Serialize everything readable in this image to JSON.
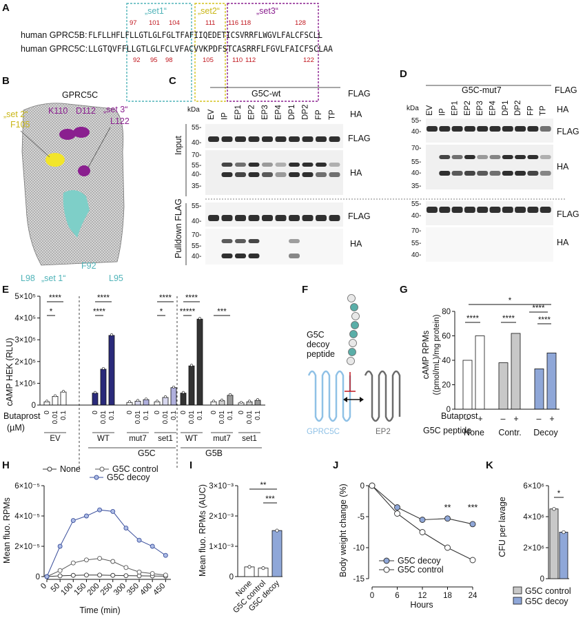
{
  "panels": {
    "A": {
      "letter": "A",
      "set1": "„set1“",
      "set2": "„set2“",
      "set3": "„set3“",
      "seqB_label": "human GPRC5B:",
      "seqB": "FLFLLHFLFLLGTLGLFGLTFAFIIQEDETICSVRRFLWGVLFALCFSCLL",
      "seqC_label": "human GPRC5C:",
      "seqC": "LLGTQVFFLLGTLGLFCLVFACVVKPDFSTCASRRFLFGVLFAICFSCLAA",
      "top_numbers": [
        "97",
        "101",
        "104",
        "111",
        "116",
        "118",
        "128"
      ],
      "bottom_numbers": [
        "92",
        "95",
        "98",
        "105",
        "110",
        "112",
        "122"
      ]
    },
    "B": {
      "letter": "B",
      "title": "GPRC5C",
      "set2_label": "„set 2“",
      "F105": "F105",
      "K110": "K110",
      "D112": "D112",
      "set3_label": "„set 3“",
      "L122": "L122",
      "L98": "L98",
      "set1_label": "„set 1“",
      "F92": "F92",
      "L95": "L95",
      "colors": {
        "set1": "#7ecfc8",
        "set2": "#f2e52a",
        "set3": "#8a1f8f"
      }
    },
    "C": {
      "letter": "C",
      "group": "G5C-wt",
      "flag": "FLAG",
      "ha": "HA",
      "kda": "kDa",
      "lanes": [
        "EV",
        "IP",
        "EP1",
        "EP2",
        "EP3",
        "EP4",
        "DP1",
        "DP2",
        "FP",
        "TP"
      ],
      "input_label": "Input",
      "pulldown_label": "Pulldown FLAG",
      "mw_input_flag": [
        "55-",
        "40-"
      ],
      "mw_input_ha": [
        "70-",
        "55-",
        "40-",
        "35-"
      ],
      "mw_pull_flag": [
        "55-",
        "40-"
      ],
      "mw_pull_ha": [
        "70-",
        "55-",
        "40-"
      ]
    },
    "D": {
      "letter": "D",
      "group": "G5C-mut7",
      "flag": "FLAG",
      "ha": "HA",
      "kda": "kDa",
      "lanes": [
        "EV",
        "IP",
        "EP1",
        "EP2",
        "EP3",
        "EP4",
        "DP1",
        "DP2",
        "FP",
        "TP"
      ],
      "mw_input_flag": [
        "55-",
        "40-"
      ],
      "mw_input_ha": [
        "70-",
        "55-",
        "40-",
        "35-"
      ],
      "mw_pull_flag": [
        "55-",
        "40-"
      ],
      "mw_pull_ha": [
        "70-",
        "55-",
        "40-"
      ]
    },
    "E": {
      "letter": "E",
      "ylabel": "cAMP HEK (RLU)",
      "yticks": [
        "0",
        "1×10⁵",
        "2×10⁵",
        "3×10⁵",
        "4×10⁵",
        "5×10⁵"
      ],
      "butaprost": "Butaprost",
      "unit": "(µM)",
      "doses": [
        "0",
        "0.01",
        "0.1"
      ],
      "groups": [
        "EV",
        "WT",
        "mut7",
        "set1",
        "WT",
        "mut7",
        "set1"
      ],
      "g5c": "G5C",
      "g5b": "G5B",
      "sig": [
        "****",
        "*",
        "****",
        "****",
        "****",
        "*",
        "****",
        "*****",
        "***"
      ]
    },
    "F": {
      "letter": "F",
      "peptide_label_1": "G5C",
      "peptide_label_2": "decoy",
      "peptide_label_3": "peptide",
      "gprc5c": "GPRC5C",
      "ep2": "EP2"
    },
    "G": {
      "letter": "G",
      "ylabel": "cAMP RPMs",
      "ylabel2": "((pmol/mL)/mg protein)",
      "yticks": [
        "0",
        "20",
        "40",
        "60",
        "80"
      ],
      "butaprost": "Butaprost",
      "minus": "–",
      "plus": "+",
      "peptide": "G5C peptide",
      "groups": [
        "None",
        "Contr.",
        "Decoy"
      ],
      "sig": [
        "*",
        "****",
        "****",
        "****",
        "****"
      ]
    },
    "H": {
      "letter": "H",
      "ylabel": "Mean fluo. RPMs",
      "xlabel": "Time (min)",
      "yticks": [
        "0",
        "2×10⁻⁵",
        "4×10⁻⁵",
        "6×10⁻⁵"
      ],
      "xticks": [
        "0",
        "50",
        "100",
        "150",
        "200",
        "250",
        "300",
        "350",
        "400",
        "450"
      ],
      "legend": [
        "None",
        "G5C control",
        "G5C decoy"
      ]
    },
    "I": {
      "letter": "I",
      "ylabel": "Mean fluo. RPMs (AUC)",
      "yticks": [
        "0",
        "1×10⁻³",
        "2×10⁻³",
        "3×10⁻³"
      ],
      "cats": [
        "None",
        "G5C control",
        "G5C decoy"
      ],
      "sig": [
        "**",
        "***"
      ]
    },
    "J": {
      "letter": "J",
      "ylabel": "Body weight change (%)",
      "xlabel": "Hours",
      "yticks": [
        "0",
        "-5",
        "-10",
        "-15"
      ],
      "xticks": [
        "0",
        "6",
        "12",
        "18",
        "24"
      ],
      "legend": [
        "G5C decoy",
        "G5C control"
      ],
      "sig": [
        "**",
        "***"
      ]
    },
    "K": {
      "letter": "K",
      "ylabel": "CFU per lavage",
      "yticks": [
        "0",
        "2×10⁶",
        "4×10⁶",
        "6×10⁶"
      ],
      "legend": [
        "G5C control",
        "G5C decoy"
      ],
      "sig": [
        "*"
      ]
    }
  },
  "chart_data": [
    {
      "panel": "E",
      "type": "bar",
      "categories": [
        "EV",
        "G5C WT",
        "G5C mut7",
        "G5C set1",
        "G5B WT",
        "G5B mut7",
        "G5B set1"
      ],
      "series": [
        {
          "name": "0",
          "values": [
            15000,
            55000,
            12000,
            15000,
            55000,
            15000,
            10000
          ]
        },
        {
          "name": "0.01",
          "values": [
            40000,
            165000,
            18000,
            35000,
            180000,
            20000,
            15000
          ]
        },
        {
          "name": "0.1",
          "values": [
            60000,
            320000,
            25000,
            80000,
            395000,
            45000,
            22000
          ]
        }
      ],
      "ylim": [
        0,
        500000
      ]
    },
    {
      "panel": "G",
      "type": "bar",
      "categories": [
        "None",
        "Contr.",
        "Decoy"
      ],
      "series": [
        {
          "name": "–",
          "values": [
            40,
            38,
            33
          ]
        },
        {
          "name": "+",
          "values": [
            60,
            62,
            46
          ]
        }
      ],
      "ylim": [
        0,
        80
      ]
    },
    {
      "panel": "H",
      "type": "line",
      "x": [
        0,
        50,
        100,
        150,
        200,
        250,
        300,
        350,
        400,
        450
      ],
      "series": [
        {
          "name": "None",
          "values": [
            0.0,
            5e-07,
            8e-07,
            1e-06,
            1e-06,
            8e-07,
            6e-07,
            5e-07,
            4e-07,
            3e-07
          ]
        },
        {
          "name": "G5C control",
          "values": [
            0.0,
            4e-06,
            9e-06,
            1.1e-05,
            1.2e-05,
            1e-05,
            6e-06,
            3e-06,
            2e-06,
            1e-06
          ]
        },
        {
          "name": "G5C decoy",
          "values": [
            0.0,
            2e-05,
            3.7e-05,
            4e-05,
            4.4e-05,
            4.3e-05,
            3.2e-05,
            2.4e-05,
            2e-05,
            1.4e-05
          ]
        }
      ],
      "ylim": [
        0,
        6e-05
      ]
    },
    {
      "panel": "I",
      "type": "bar",
      "categories": [
        "None",
        "G5C control",
        "G5C decoy"
      ],
      "values": [
        0.00032,
        0.00028,
        0.00152
      ],
      "ylim": [
        0,
        0.003
      ]
    },
    {
      "panel": "J",
      "type": "line",
      "x": [
        0,
        6,
        12,
        18,
        24
      ],
      "series": [
        {
          "name": "G5C decoy",
          "values": [
            0,
            -3.5,
            -5.5,
            -5.3,
            -6.2
          ]
        },
        {
          "name": "G5C control",
          "values": [
            0,
            -4.5,
            -7.5,
            -10,
            -12
          ]
        }
      ],
      "ylim": [
        -15,
        0
      ]
    },
    {
      "panel": "K",
      "type": "bar",
      "categories": [
        "G5C control",
        "G5C decoy"
      ],
      "values": [
        4500000,
        3000000
      ],
      "ylim": [
        0,
        6000000
      ]
    }
  ]
}
